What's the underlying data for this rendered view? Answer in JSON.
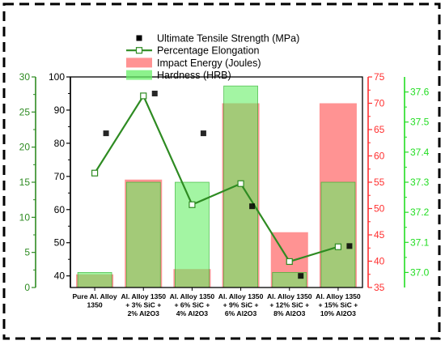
{
  "chart_data": {
    "type": "bar",
    "categories": [
      [
        "Pure Al. Alloy",
        "1350"
      ],
      [
        "Al. Alloy 1350",
        "+ 3% SiC +",
        "2% Al2O3"
      ],
      [
        "Al. Alloy 1350",
        "+ 6% SiC +",
        "4% Al2O3"
      ],
      [
        "Al. Alloy 1350",
        "+ 9% SiC +",
        "6% Al2O3"
      ],
      [
        "Al. Alloy 1350",
        "+ 12% SiC +",
        "8% Al2O3"
      ],
      [
        "Al. Alloy 1350",
        "+ 15% SiC +",
        "10% Al2O3"
      ]
    ],
    "axes": {
      "uts": {
        "ticks": [
          "40",
          "50",
          "60",
          "70",
          "80",
          "90",
          "100"
        ],
        "range": [
          36.5,
          100
        ],
        "color": "#000000"
      },
      "elongation": {
        "ticks": [
          "0",
          "5",
          "10",
          "15",
          "20",
          "25",
          "30"
        ],
        "range": [
          0,
          30
        ],
        "color": "#2e8b22"
      },
      "impact": {
        "ticks": [
          "35",
          "40",
          "45",
          "50",
          "55",
          "60",
          "65",
          "70",
          "75"
        ],
        "range": [
          35,
          75
        ],
        "color": "#ff3030"
      },
      "hardness": {
        "ticks": [
          "37.0",
          "37.1",
          "37.2",
          "37.3",
          "37.4",
          "37.5",
          "37.6"
        ],
        "range": [
          36.95,
          37.65
        ],
        "color": "#22dd22"
      }
    },
    "series": [
      {
        "name": "Ultimate Tensile Strength (MPa)",
        "axis": "uts",
        "kind": "marker",
        "color": "#000000",
        "values": [
          83,
          95,
          83,
          61,
          40,
          49
        ]
      },
      {
        "name": "Percentage Elongation",
        "axis": "elongation",
        "kind": "line",
        "color": "#2e8b22",
        "values": [
          16.3,
          27.3,
          11.8,
          14.8,
          3.7,
          5.8
        ]
      },
      {
        "name": "Impact Energy (Joules)",
        "axis": "impact",
        "kind": "bar",
        "color": "#ff8080",
        "values": [
          37.5,
          55.5,
          38.5,
          70,
          45.5,
          70
        ]
      },
      {
        "name": "Hardness (HRB)",
        "axis": "hardness",
        "kind": "bar",
        "color": "#66ee66",
        "values": [
          37.0,
          37.3,
          37.3,
          37.62,
          37.0,
          37.3
        ]
      }
    ]
  }
}
